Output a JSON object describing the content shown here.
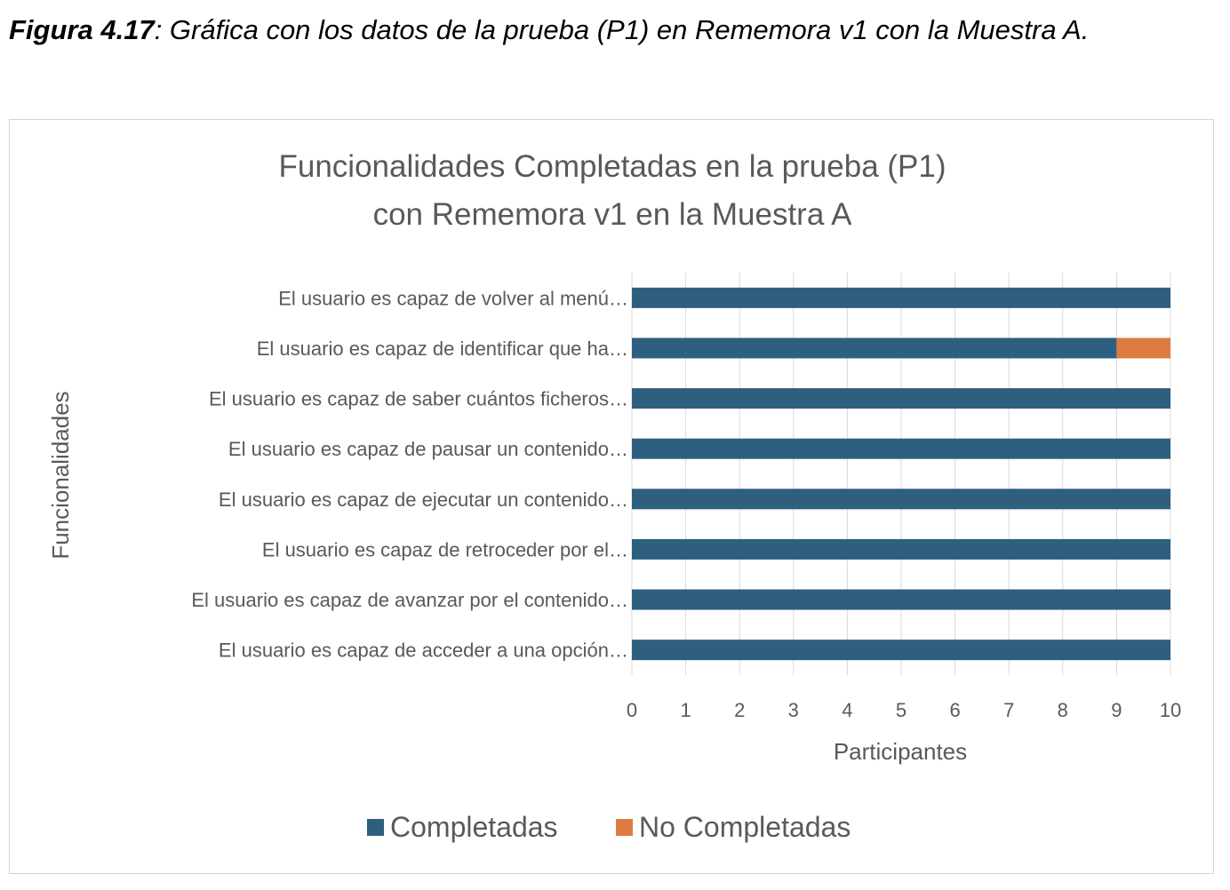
{
  "caption": {
    "label": "Figura 4.17",
    "text": ": Gráfica con los datos de la prueba (P1) en Rememora v1 con la Muestra A."
  },
  "chart_data": {
    "type": "bar",
    "orientation": "horizontal",
    "stacked": true,
    "title_lines": [
      "Funcionalidades Completadas en la prueba (P1)",
      "con Rememora v1 en la Muestra A"
    ],
    "xlabel": "Participantes",
    "ylabel": "Funcionalidades",
    "xlim": [
      0,
      10
    ],
    "xticks": [
      "0",
      "1",
      "2",
      "3",
      "4",
      "5",
      "6",
      "7",
      "8",
      "9",
      "10"
    ],
    "grid": "vertical",
    "legend_position": "bottom",
    "categories": [
      "El usuario es capaz de volver al menú…",
      "El usuario es capaz de identificar que ha…",
      "El usuario es capaz de saber cuántos ficheros…",
      "El usuario es capaz de pausar un contenido…",
      "El usuario es capaz de ejecutar un contenido…",
      "El usuario es capaz de retroceder por el…",
      "El usuario es capaz de avanzar por el contenido…",
      "El usuario es capaz de acceder a una opción…"
    ],
    "series": [
      {
        "name": "Completadas",
        "color": "#2e5f7f",
        "values": [
          10,
          9,
          10,
          10,
          10,
          10,
          10,
          10
        ]
      },
      {
        "name": "No Completadas",
        "color": "#dd7b42",
        "values": [
          0,
          1,
          0,
          0,
          0,
          0,
          0,
          0
        ]
      }
    ]
  }
}
